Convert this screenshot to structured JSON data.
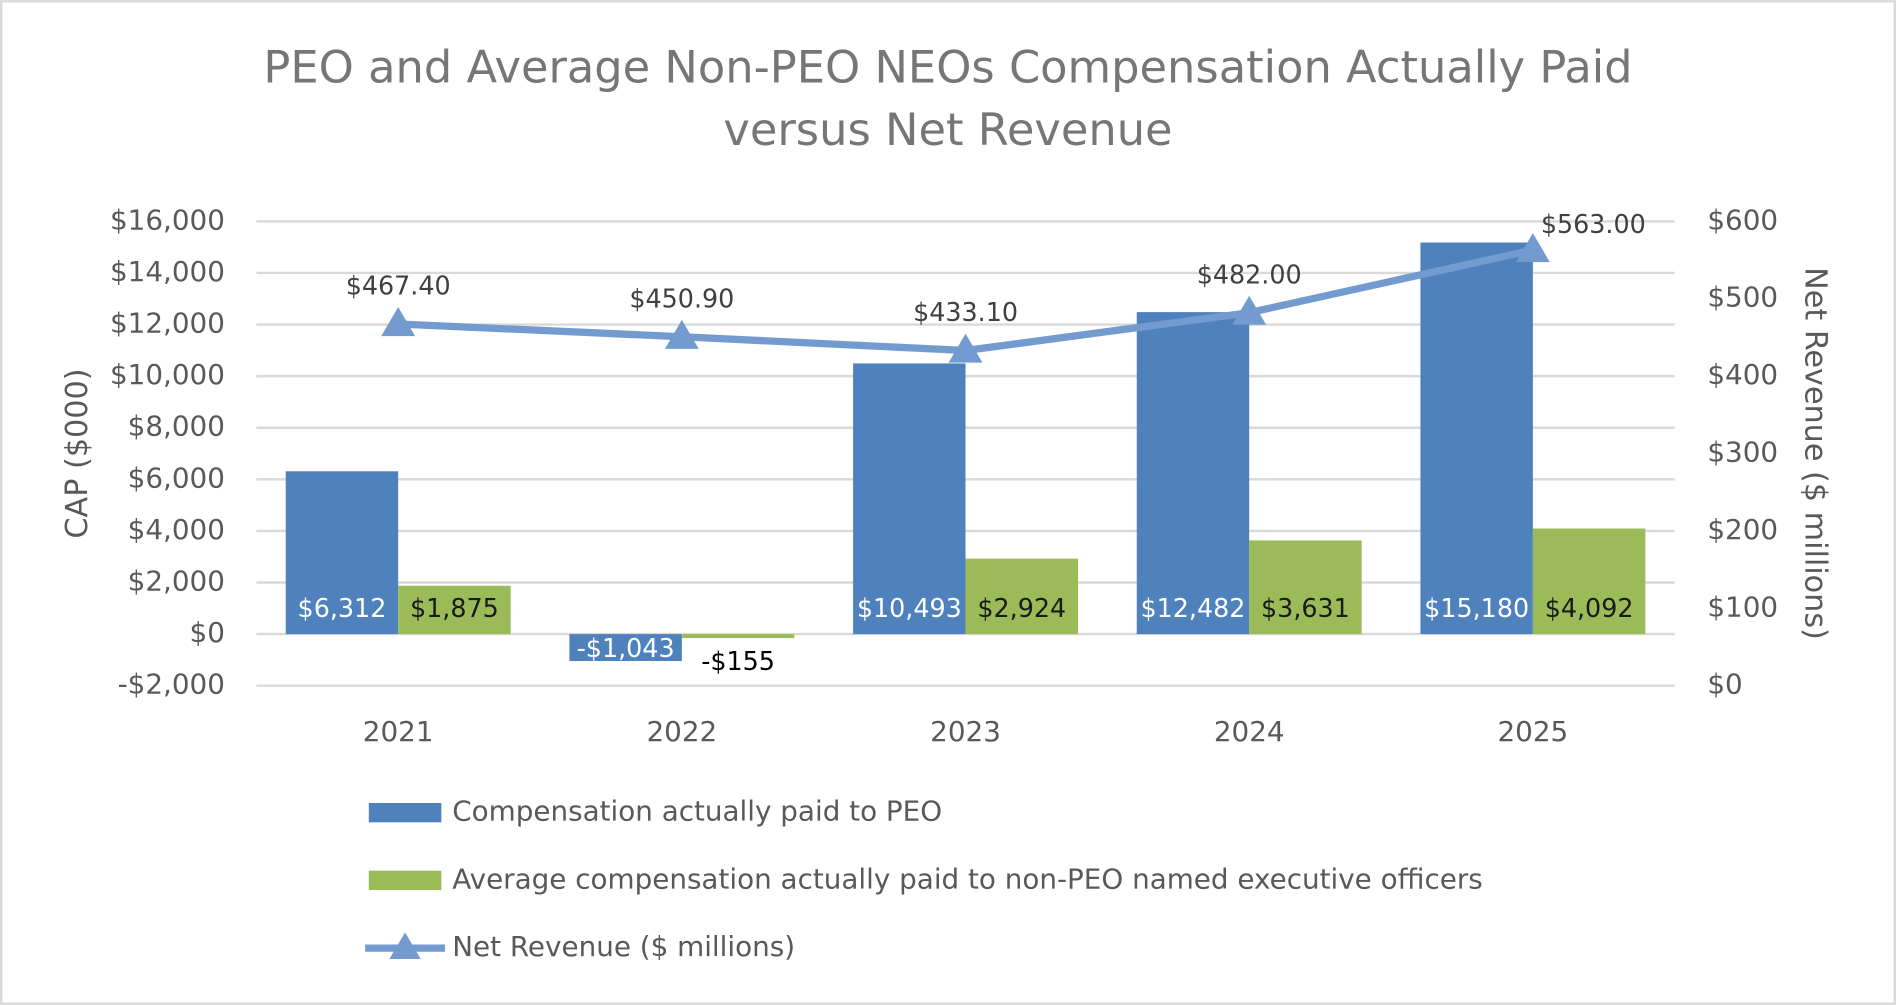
{
  "chart_data": {
    "type": "bar",
    "title": "PEO and Average Non-PEO NEOs Compensation Actually Paid versus Net Revenue",
    "y_label": "CAP ($000)",
    "y2_label": "Net Revenue ($ millions)",
    "categories": [
      "2021",
      "2022",
      "2023",
      "2024",
      "2025"
    ],
    "series": [
      {
        "name": "Compensation actually paid to PEO",
        "color": "#4f81bd",
        "type": "bar",
        "values": [
          6312,
          -1043,
          10493,
          12482,
          15180
        ],
        "value_labels": [
          "$6,312",
          "-$1,043",
          "$10,493",
          "$12,482",
          "$15,180"
        ]
      },
      {
        "name": "Average compensation actually paid to non-PEO named executive officers",
        "color": "#9bbb59",
        "type": "bar",
        "values": [
          1875,
          -155,
          2924,
          3631,
          4092
        ],
        "value_labels": [
          "$1,875",
          "-$155",
          "$2,924",
          "$3,631",
          "$4,092"
        ]
      },
      {
        "name": "Net Revenue ($ millions)",
        "color": "#739bcf",
        "type": "line",
        "axis": "y2",
        "values": [
          467.4,
          450.9,
          433.1,
          482,
          563
        ],
        "value_labels": [
          "$467.40",
          "$450.90",
          "$433.10",
          "$482.00",
          "$563.00"
        ]
      }
    ],
    "ylim": [
      -2000,
      16000
    ],
    "yticks": [
      {
        "value": -2000,
        "label": "-$2,000"
      },
      {
        "value": 0,
        "label": "$0"
      },
      {
        "value": 2000,
        "label": "$2,000"
      },
      {
        "value": 4000,
        "label": "$4,000"
      },
      {
        "value": 6000,
        "label": "$6,000"
      },
      {
        "value": 8000,
        "label": "$8,000"
      },
      {
        "value": 10000,
        "label": "$10,000"
      },
      {
        "value": 12000,
        "label": "$12,000"
      },
      {
        "value": 14000,
        "label": "$14,000"
      },
      {
        "value": 16000,
        "label": "$16,000"
      }
    ],
    "y2lim": [
      0,
      600
    ],
    "y2ticks": [
      {
        "value": 0,
        "label": "$0"
      },
      {
        "value": 100,
        "label": "$100"
      },
      {
        "value": 200,
        "label": "$200"
      },
      {
        "value": 300,
        "label": "$300"
      },
      {
        "value": 400,
        "label": "$400"
      },
      {
        "value": 500,
        "label": "$500"
      },
      {
        "value": 600,
        "label": "$600"
      }
    ],
    "grid": true
  }
}
